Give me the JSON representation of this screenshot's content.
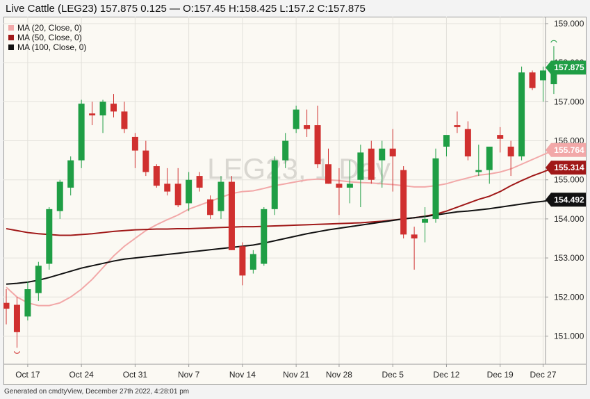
{
  "header": {
    "title": "Live Cattle (LEG23) 157.875 0.125 — O:157.45 H:158.425 L:157.2 C:157.875"
  },
  "watermark": "LEG23, 1 Day",
  "footer": "Generated on cmdtyView, December 27th 2022, 4:28:01 pm",
  "legend": [
    {
      "label": "MA (20, Close, 0)",
      "color": "#f2a8a8"
    },
    {
      "label": "MA (50, Close, 0)",
      "color": "#a01818"
    },
    {
      "label": "MA (100, Close, 0)",
      "color": "#111111"
    }
  ],
  "colors": {
    "up": "#1f9e45",
    "down": "#d0302f",
    "ma20": "#f2a8a8",
    "ma50": "#a01818",
    "ma100": "#111111",
    "last": "#1f9e45"
  },
  "chart_data": {
    "type": "candlestick",
    "ylim": [
      150.1,
      159.0
    ],
    "yticks": [
      "159.000",
      "158.000",
      "157.000",
      "156.000",
      "155.000",
      "154.000",
      "153.000",
      "152.000",
      "151.000"
    ],
    "xticks": [
      {
        "label": "Oct 17",
        "index": 2
      },
      {
        "label": "Oct 24",
        "index": 7
      },
      {
        "label": "Oct 31",
        "index": 12
      },
      {
        "label": "Nov 7",
        "index": 17
      },
      {
        "label": "Nov 14",
        "index": 22
      },
      {
        "label": "Nov 21",
        "index": 27
      },
      {
        "label": "Nov 28",
        "index": 31
      },
      {
        "label": "Dec 5",
        "index": 36
      },
      {
        "label": "Dec 12",
        "index": 41
      },
      {
        "label": "Dec 19",
        "index": 46
      },
      {
        "label": "Dec 27",
        "index": 50
      }
    ],
    "candles": [
      {
        "o": 151.85,
        "h": 152.2,
        "l": 151.3,
        "c": 151.7
      },
      {
        "o": 151.8,
        "h": 152.0,
        "l": 150.7,
        "c": 151.1
      },
      {
        "o": 151.5,
        "h": 152.4,
        "l": 151.4,
        "c": 152.2
      },
      {
        "o": 152.1,
        "h": 152.9,
        "l": 151.9,
        "c": 152.8
      },
      {
        "o": 152.85,
        "h": 154.3,
        "l": 152.7,
        "c": 154.25
      },
      {
        "o": 154.2,
        "h": 155.0,
        "l": 154.0,
        "c": 154.95
      },
      {
        "o": 154.8,
        "h": 155.6,
        "l": 154.6,
        "c": 155.5
      },
      {
        "o": 155.5,
        "h": 157.05,
        "l": 155.3,
        "c": 156.95
      },
      {
        "o": 156.7,
        "h": 157.0,
        "l": 156.4,
        "c": 156.65
      },
      {
        "o": 156.65,
        "h": 157.05,
        "l": 156.2,
        "c": 157.0
      },
      {
        "o": 156.95,
        "h": 157.2,
        "l": 156.6,
        "c": 156.75
      },
      {
        "o": 156.75,
        "h": 157.0,
        "l": 156.2,
        "c": 156.3
      },
      {
        "o": 156.1,
        "h": 156.2,
        "l": 155.3,
        "c": 155.75
      },
      {
        "o": 155.75,
        "h": 156.0,
        "l": 155.1,
        "c": 155.2
      },
      {
        "o": 155.35,
        "h": 155.4,
        "l": 154.8,
        "c": 154.85
      },
      {
        "o": 154.9,
        "h": 155.3,
        "l": 154.6,
        "c": 154.7
      },
      {
        "o": 154.9,
        "h": 155.3,
        "l": 154.3,
        "c": 154.35
      },
      {
        "o": 154.4,
        "h": 155.2,
        "l": 154.2,
        "c": 155.0
      },
      {
        "o": 155.1,
        "h": 155.2,
        "l": 154.7,
        "c": 154.8
      },
      {
        "o": 154.5,
        "h": 154.6,
        "l": 154.0,
        "c": 154.1
      },
      {
        "o": 154.2,
        "h": 155.1,
        "l": 154.0,
        "c": 154.95
      },
      {
        "o": 154.95,
        "h": 155.1,
        "l": 153.2,
        "c": 153.2
      },
      {
        "o": 153.3,
        "h": 153.4,
        "l": 152.3,
        "c": 152.55
      },
      {
        "o": 152.7,
        "h": 153.2,
        "l": 152.6,
        "c": 153.1
      },
      {
        "o": 152.85,
        "h": 154.3,
        "l": 152.8,
        "c": 154.25
      },
      {
        "o": 154.25,
        "h": 155.6,
        "l": 154.1,
        "c": 155.5
      },
      {
        "o": 155.5,
        "h": 156.2,
        "l": 155.3,
        "c": 156.0
      },
      {
        "o": 156.3,
        "h": 156.9,
        "l": 156.2,
        "c": 156.8
      },
      {
        "o": 156.4,
        "h": 156.8,
        "l": 156.1,
        "c": 156.3
      },
      {
        "o": 156.4,
        "h": 156.9,
        "l": 155.3,
        "c": 155.4
      },
      {
        "o": 155.4,
        "h": 155.8,
        "l": 154.9,
        "c": 154.9
      },
      {
        "o": 154.9,
        "h": 155.3,
        "l": 154.1,
        "c": 154.8
      },
      {
        "o": 154.8,
        "h": 155.5,
        "l": 154.4,
        "c": 154.9
      },
      {
        "o": 155.0,
        "h": 155.9,
        "l": 154.3,
        "c": 155.7
      },
      {
        "o": 155.8,
        "h": 156.0,
        "l": 154.9,
        "c": 155.0
      },
      {
        "o": 155.5,
        "h": 156.0,
        "l": 154.8,
        "c": 155.8
      },
      {
        "o": 155.8,
        "h": 156.3,
        "l": 154.7,
        "c": 155.6
      },
      {
        "o": 155.25,
        "h": 155.35,
        "l": 153.5,
        "c": 153.6
      },
      {
        "o": 153.6,
        "h": 153.8,
        "l": 152.7,
        "c": 153.5
      },
      {
        "o": 153.9,
        "h": 154.3,
        "l": 153.4,
        "c": 154.0
      },
      {
        "o": 154.0,
        "h": 155.8,
        "l": 153.9,
        "c": 155.55
      },
      {
        "o": 155.85,
        "h": 156.1,
        "l": 155.6,
        "c": 156.15
      },
      {
        "o": 156.4,
        "h": 156.75,
        "l": 156.2,
        "c": 156.35
      },
      {
        "o": 156.3,
        "h": 156.5,
        "l": 155.5,
        "c": 155.6
      },
      {
        "o": 155.2,
        "h": 155.9,
        "l": 155.1,
        "c": 155.25
      },
      {
        "o": 155.25,
        "h": 155.8,
        "l": 154.9,
        "c": 155.85
      },
      {
        "o": 156.15,
        "h": 156.35,
        "l": 155.7,
        "c": 156.05
      },
      {
        "o": 155.85,
        "h": 156.0,
        "l": 155.1,
        "c": 155.6
      },
      {
        "o": 155.6,
        "h": 157.9,
        "l": 155.5,
        "c": 157.75
      },
      {
        "o": 157.75,
        "h": 157.8,
        "l": 157.3,
        "c": 157.35
      },
      {
        "o": 157.55,
        "h": 157.9,
        "l": 157.0,
        "c": 157.8
      },
      {
        "o": 157.45,
        "h": 158.425,
        "l": 157.2,
        "c": 157.875
      }
    ],
    "series": [
      {
        "name": "MA (20, Close, 0)",
        "values": [
          152.25,
          152.0,
          151.85,
          151.78,
          151.78,
          151.85,
          152.0,
          152.2,
          152.45,
          152.75,
          153.05,
          153.3,
          153.5,
          153.7,
          153.85,
          153.98,
          154.1,
          154.25,
          154.35,
          154.45,
          154.55,
          154.65,
          154.7,
          154.72,
          154.78,
          154.85,
          154.9,
          154.95,
          155.0,
          155.02,
          155.0,
          154.98,
          154.95,
          154.93,
          154.92,
          154.9,
          154.88,
          154.85,
          154.82,
          154.82,
          154.85,
          154.9,
          154.98,
          155.05,
          155.12,
          155.15,
          155.2,
          155.28,
          155.4,
          155.52,
          155.64,
          155.764
        ]
      },
      {
        "name": "MA (50, Close, 0)",
        "values": [
          153.75,
          153.7,
          153.65,
          153.62,
          153.6,
          153.58,
          153.58,
          153.6,
          153.62,
          153.65,
          153.68,
          153.7,
          153.72,
          153.73,
          153.74,
          153.74,
          153.75,
          153.75,
          153.76,
          153.77,
          153.78,
          153.79,
          153.8,
          153.8,
          153.81,
          153.82,
          153.83,
          153.84,
          153.85,
          153.86,
          153.87,
          153.88,
          153.89,
          153.9,
          153.92,
          153.94,
          153.97,
          154.0,
          154.03,
          154.07,
          154.12,
          154.2,
          154.3,
          154.4,
          154.5,
          154.58,
          154.7,
          154.85,
          154.98,
          155.1,
          155.2,
          155.314
        ]
      },
      {
        "name": "MA (100, Close, 0)",
        "values": [
          152.33,
          152.35,
          152.38,
          152.43,
          152.5,
          152.58,
          152.66,
          152.74,
          152.8,
          152.86,
          152.92,
          152.97,
          153.0,
          153.03,
          153.06,
          153.09,
          153.12,
          153.15,
          153.18,
          153.21,
          153.24,
          153.27,
          153.3,
          153.33,
          153.38,
          153.44,
          153.5,
          153.56,
          153.62,
          153.67,
          153.72,
          153.76,
          153.8,
          153.84,
          153.88,
          153.92,
          153.96,
          154.0,
          154.03,
          154.06,
          154.1,
          154.14,
          154.18,
          154.2,
          154.23,
          154.26,
          154.3,
          154.34,
          154.38,
          154.42,
          154.45,
          154.492
        ]
      }
    ],
    "last_labels": [
      {
        "value": "157.875",
        "color": "#1f9e45"
      },
      {
        "value": "155.764",
        "color": "#f2a8a8"
      },
      {
        "value": "155.314",
        "color": "#a01818"
      },
      {
        "value": "154.492",
        "color": "#111111"
      }
    ]
  }
}
